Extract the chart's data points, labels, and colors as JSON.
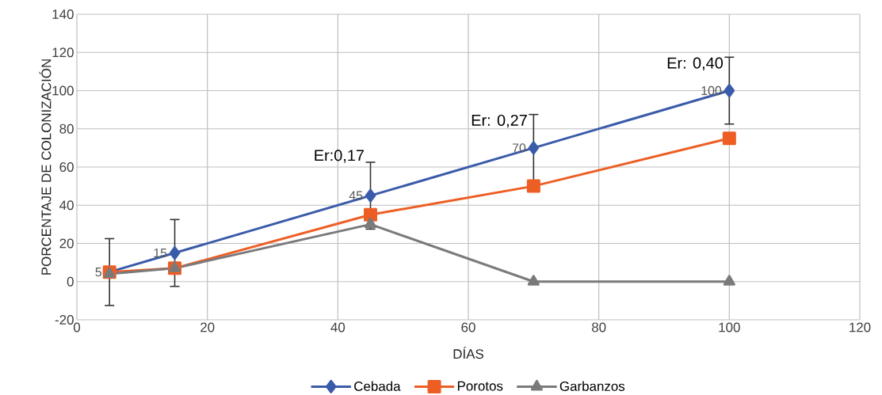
{
  "chart_data": {
    "type": "line",
    "xlabel": "DÍAS",
    "ylabel": "PORCENTAJE DE COLONIZACIÓN",
    "x": [
      5,
      15,
      45,
      70,
      100
    ],
    "series": [
      {
        "name": "Cebada",
        "color": "#3a5ba9",
        "marker": "diamond",
        "values": [
          5,
          15,
          45,
          70,
          100
        ],
        "errors": [
          17.5,
          17.5,
          17.5,
          17.5,
          17.5
        ],
        "value_labels": [
          "5",
          "15",
          "45",
          "70",
          "100"
        ]
      },
      {
        "name": "Porotos",
        "color": "#ed5e24",
        "marker": "square",
        "values": [
          5,
          7,
          35,
          50,
          75
        ]
      },
      {
        "name": "Garbanzos",
        "color": "#7a7a7c",
        "marker": "triangle",
        "values": [
          4,
          7,
          30,
          0,
          0
        ]
      }
    ],
    "annotations": [
      "Er:0,17",
      "Er: 0,27",
      "Er: 0,40"
    ],
    "xlim": [
      0,
      120
    ],
    "xticks": [
      0,
      20,
      40,
      60,
      80,
      100,
      120
    ],
    "ylim": [
      -20,
      140
    ],
    "yticks": [
      -20,
      0,
      20,
      40,
      60,
      80,
      100,
      120,
      140
    ],
    "grid": true,
    "legend": "bottom",
    "line_style": "solid"
  }
}
